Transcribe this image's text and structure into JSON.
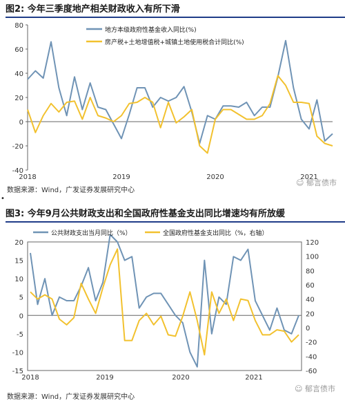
{
  "figures": [
    {
      "title": "图2: 今年三季度地产相关财政收入有所下滑",
      "source": "数据来源：Wind，广发证券发展研究中心",
      "watermark": "☺ 郁言债市"
    },
    {
      "title": "图3: 今年9月公共财政支出和全国政府性基金支出同比增速均有所放缓",
      "source": "数据来源：Wind，广发证券发展研究中心",
      "watermark": "☺ 郁言债市"
    }
  ],
  "bullet": "•",
  "chart_data": [
    {
      "type": "line",
      "title": "图2: 今年三季度地产相关财政收入有所下滑",
      "xlabel": "",
      "ylabel": "",
      "x_ticks": [
        "2018",
        "2019",
        "2020",
        "2021"
      ],
      "ylim": [
        -40,
        80
      ],
      "y_ticks": [
        -40,
        -20,
        0,
        20,
        40,
        60,
        80
      ],
      "legend_placement": "top-center",
      "colors": {
        "blue": "#6f93b5",
        "gold": "#f2c12e"
      },
      "series": [
        {
          "name": "地方本级政府性基金收入同比(%)",
          "color": "#6f93b5",
          "values": [
            35,
            42,
            36,
            66,
            28,
            5,
            37,
            10,
            32,
            12,
            10,
            -2,
            -14,
            6,
            28,
            28,
            12,
            20,
            17,
            20,
            29,
            8,
            -18,
            5,
            2,
            13,
            13,
            12,
            16,
            5,
            12,
            12,
            37,
            67,
            28,
            2,
            -6,
            18,
            -16,
            -10
          ]
        },
        {
          "name": "房产税+土地增值税+城镇土地使用税合计同比(%)",
          "color": "#f2c12e",
          "values": [
            10,
            -9,
            5,
            15,
            8,
            16,
            17,
            2,
            20,
            5,
            3,
            0,
            5,
            15,
            16,
            20,
            16,
            -5,
            16,
            -1,
            4,
            10,
            -20,
            -26,
            2,
            10,
            10,
            6,
            2,
            2,
            5,
            15,
            38,
            30,
            16,
            16,
            15,
            -12,
            -18,
            -20
          ]
        }
      ]
    },
    {
      "type": "line",
      "title": "图3: 今年9月公共财政支出和全国政府性基金支出同比增速均有所放缓",
      "xlabel": "",
      "ylabel": "",
      "x_ticks": [
        "2018",
        "2019",
        "2020",
        "2021"
      ],
      "ylim_left": [
        -15,
        20
      ],
      "y_ticks_left": [
        -15,
        -10,
        -5,
        0,
        5,
        10,
        15,
        20
      ],
      "ylim_right": [
        -60,
        120
      ],
      "y_ticks_right": [
        -60,
        -40,
        -20,
        0,
        20,
        40,
        60,
        80,
        100,
        120
      ],
      "legend_placement": "top",
      "series": [
        {
          "name": "公共财政支出当月同比（%）",
          "color": "#6f93b5",
          "axis": "left",
          "values": [
            17,
            3,
            10,
            0,
            5,
            4,
            4,
            8,
            13,
            4,
            9,
            22,
            20,
            15,
            16,
            2,
            5,
            6,
            6,
            3,
            0,
            -2,
            -10,
            -14,
            15,
            -5,
            5,
            3,
            16,
            15,
            18,
            4,
            0,
            -4,
            2,
            -4,
            -5,
            0
          ]
        },
        {
          "name": "全国政府性基金支出同比（%，右轴）",
          "color": "#f2c12e",
          "axis": "right",
          "values": [
            50,
            40,
            46,
            40,
            12,
            4,
            14,
            62,
            40,
            20,
            56,
            88,
            110,
            -18,
            -18,
            10,
            20,
            4,
            16,
            -10,
            -12,
            16,
            50,
            10,
            -38,
            50,
            20,
            40,
            10,
            40,
            38,
            10,
            -10,
            -10,
            -3,
            -5,
            -20,
            -10
          ]
        }
      ]
    }
  ]
}
